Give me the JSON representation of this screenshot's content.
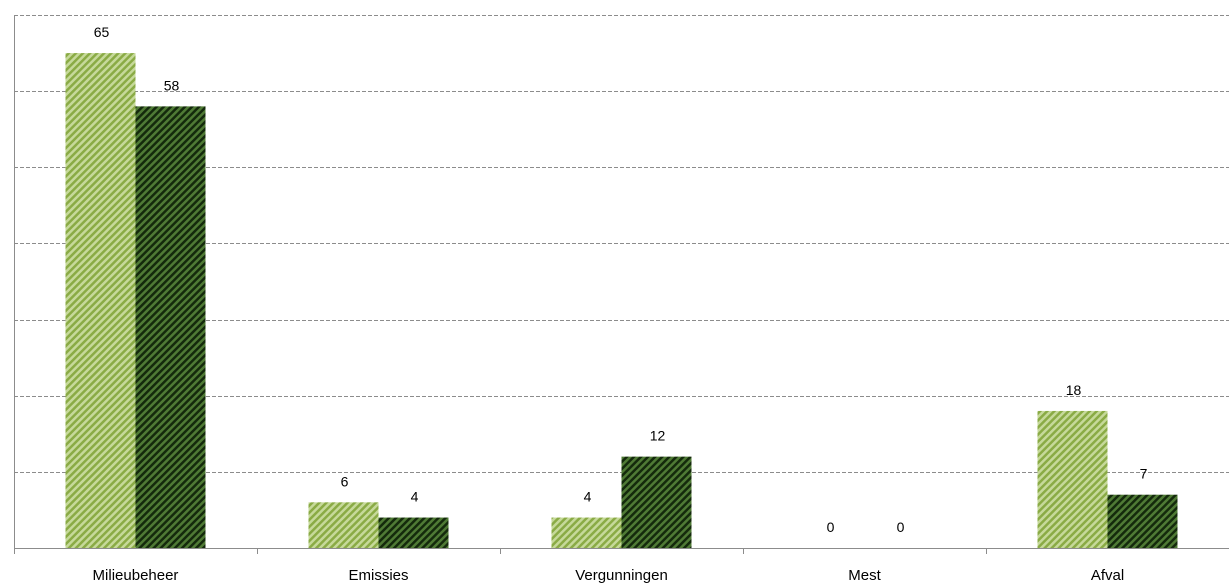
{
  "chart_data": {
    "type": "bar",
    "title": "",
    "xlabel": "",
    "ylabel": "",
    "categories": [
      "Milieubeheer",
      "Emissies",
      "Vergunningen",
      "Mest",
      "Afval"
    ],
    "series": [
      {
        "values": [
          65,
          6,
          4,
          0,
          18
        ],
        "color": "#9bbb59",
        "pattern": "diagonal-stripes-light"
      },
      {
        "values": [
          58,
          4,
          12,
          0,
          7
        ],
        "color": "#1f3b14",
        "pattern": "diagonal-stripes-dark"
      }
    ],
    "ylim": [
      0,
      70
    ],
    "grid": true,
    "grid_step": 10,
    "legend": "none",
    "data_labels": true
  }
}
